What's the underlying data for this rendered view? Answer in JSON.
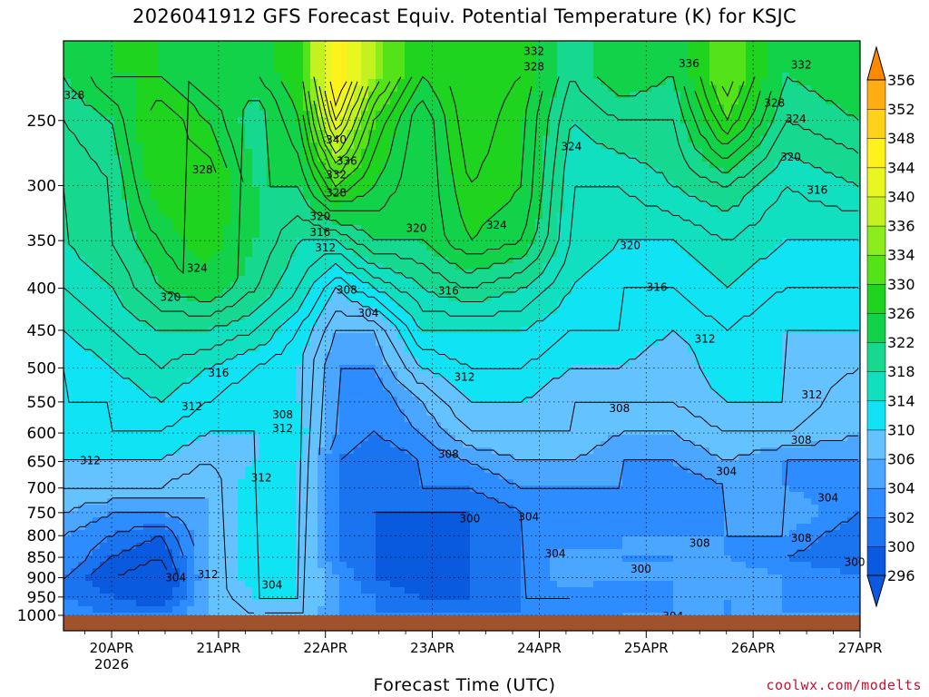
{
  "title": "2026041912 GFS Forecast Equiv. Potential Temperature (K) for KSJC",
  "credit": "coolwx.com/modelts",
  "chart_data": {
    "type": "heatmap",
    "title": "2026041912 GFS Forecast Equiv. Potential Temperature (K) for KSJC",
    "xlabel": "Forecast Time (UTC)",
    "ylabel": "",
    "x_ticks": [
      {
        "label": "20APR",
        "sub": "2026",
        "day": 0
      },
      {
        "label": "21APR",
        "sub": "",
        "day": 1
      },
      {
        "label": "22APR",
        "sub": "",
        "day": 2
      },
      {
        "label": "23APR",
        "sub": "",
        "day": 3
      },
      {
        "label": "24APR",
        "sub": "",
        "day": 4
      },
      {
        "label": "25APR",
        "sub": "",
        "day": 5
      },
      {
        "label": "26APR",
        "sub": "",
        "day": 6
      },
      {
        "label": "27APR",
        "sub": "",
        "day": 7
      }
    ],
    "xlim": [
      -0.45,
      7.0
    ],
    "y_ticks": [
      250,
      300,
      350,
      400,
      450,
      500,
      550,
      600,
      650,
      700,
      750,
      800,
      850,
      900,
      950,
      1000
    ],
    "ylim": [
      200,
      1000
    ],
    "y_scale": "log",
    "y_inverted": true,
    "grid": "dotted",
    "colorbar": {
      "levels": [
        296,
        300,
        302,
        304,
        306,
        310,
        314,
        318,
        322,
        326,
        330,
        334,
        336,
        340,
        344,
        348,
        352,
        356
      ],
      "colors": [
        "#0a5ae0",
        "#1a74f0",
        "#2d8cff",
        "#4aa6ff",
        "#64c2ff",
        "#10e4f4",
        "#10e0c0",
        "#16d88e",
        "#12d24a",
        "#1ed41e",
        "#54e218",
        "#8ced1c",
        "#c4f220",
        "#eaf620",
        "#fff21c",
        "#ffd21a",
        "#ffae12",
        "#ff8a00"
      ],
      "extend": "both"
    },
    "theta_levels": [
      {
        "p": 220,
        "v": [
          322,
          326,
          326,
          322,
          324,
          328,
          348,
          336,
          326,
          330,
          328,
          320,
          324,
          322,
          334,
          322,
          324
        ]
      },
      {
        "p": 250,
        "v": [
          320,
          322,
          330,
          326,
          320,
          326,
          342,
          330,
          322,
          330,
          326,
          318,
          320,
          320,
          330,
          320,
          322
        ]
      },
      {
        "p": 300,
        "v": [
          318,
          320,
          328,
          330,
          322,
          322,
          330,
          326,
          322,
          328,
          326,
          316,
          316,
          318,
          320,
          316,
          318
        ]
      },
      {
        "p": 350,
        "v": [
          318,
          320,
          324,
          328,
          322,
          318,
          318,
          322,
          322,
          326,
          324,
          316,
          314,
          314,
          316,
          314,
          314
        ]
      },
      {
        "p": 400,
        "v": [
          316,
          318,
          322,
          324,
          320,
          316,
          310,
          314,
          318,
          320,
          318,
          314,
          312,
          312,
          314,
          312,
          312
        ]
      },
      {
        "p": 450,
        "v": [
          314,
          316,
          318,
          318,
          316,
          312,
          306,
          306,
          314,
          314,
          314,
          312,
          312,
          310,
          312,
          310,
          310
        ]
      },
      {
        "p": 500,
        "v": [
          312,
          314,
          316,
          314,
          312,
          310,
          304,
          304,
          310,
          312,
          312,
          310,
          310,
          308,
          312,
          310,
          308
        ]
      },
      {
        "p": 550,
        "v": [
          312,
          312,
          314,
          312,
          310,
          310,
          304,
          302,
          306,
          310,
          310,
          308,
          308,
          308,
          310,
          310,
          306
        ]
      },
      {
        "p": 600,
        "v": [
          312,
          312,
          312,
          310,
          310,
          312,
          304,
          302,
          304,
          308,
          308,
          308,
          306,
          306,
          308,
          308,
          306
        ]
      },
      {
        "p": 650,
        "v": [
          310,
          310,
          310,
          308,
          310,
          310,
          302,
          300,
          302,
          304,
          306,
          306,
          304,
          304,
          306,
          304,
          304
        ]
      },
      {
        "p": 700,
        "v": [
          308,
          308,
          308,
          306,
          312,
          310,
          302,
          300,
          302,
          302,
          304,
          304,
          304,
          302,
          304,
          304,
          302
        ]
      },
      {
        "p": 750,
        "v": [
          306,
          304,
          304,
          306,
          312,
          310,
          302,
          300,
          300,
          300,
          302,
          304,
          302,
          302,
          304,
          306,
          302
        ]
      },
      {
        "p": 800,
        "v": [
          304,
          302,
          300,
          306,
          312,
          310,
          302,
          300,
          298,
          300,
          302,
          302,
          304,
          304,
          304,
          304,
          300
        ]
      },
      {
        "p": 850,
        "v": [
          304,
          300,
          298,
          306,
          312,
          310,
          302,
          300,
          298,
          300,
          302,
          306,
          304,
          304,
          304,
          302,
          300
        ]
      },
      {
        "p": 900,
        "v": [
          302,
          298,
          296,
          306,
          312,
          310,
          304,
          300,
          298,
          300,
          302,
          306,
          304,
          304,
          306,
          304,
          302
        ]
      },
      {
        "p": 950,
        "v": [
          302,
          300,
          298,
          306,
          310,
          310,
          304,
          302,
          300,
          300,
          302,
          302,
          302,
          304,
          304,
          304,
          302
        ]
      },
      {
        "p": 1000,
        "v": [
          304,
          302,
          302,
          306,
          308,
          308,
          304,
          302,
          302,
          302,
          302,
          302,
          304,
          304,
          304,
          304,
          304
        ]
      }
    ],
    "theta_time_days": [
      -0.45,
      0.0,
      0.45,
      0.9,
      1.35,
      1.75,
      2.1,
      2.45,
      2.9,
      3.35,
      3.85,
      4.3,
      4.75,
      5.25,
      5.75,
      6.3,
      7.0
    ],
    "contour_labels": [
      {
        "day": -0.35,
        "p": 233,
        "text": "328"
      },
      {
        "day": 0.85,
        "p": 287,
        "text": "328"
      },
      {
        "day": 0.8,
        "p": 378,
        "text": "324"
      },
      {
        "day": 0.55,
        "p": 410,
        "text": "320"
      },
      {
        "day": 1.0,
        "p": 507,
        "text": "316"
      },
      {
        "day": 0.75,
        "p": 557,
        "text": "312"
      },
      {
        "day": -0.2,
        "p": 648,
        "text": "312"
      },
      {
        "day": 1.6,
        "p": 570,
        "text": "308"
      },
      {
        "day": 1.6,
        "p": 592,
        "text": "312"
      },
      {
        "day": 1.4,
        "p": 680,
        "text": "312"
      },
      {
        "day": 1.5,
        "p": 918,
        "text": "304"
      },
      {
        "day": 0.9,
        "p": 892,
        "text": "312"
      },
      {
        "day": 0.6,
        "p": 900,
        "text": "304"
      },
      {
        "day": 2.1,
        "p": 264,
        "text": "340"
      },
      {
        "day": 2.2,
        "p": 280,
        "text": "336"
      },
      {
        "day": 2.1,
        "p": 291,
        "text": "332"
      },
      {
        "day": 2.1,
        "p": 306,
        "text": "328"
      },
      {
        "day": 1.95,
        "p": 327,
        "text": "320"
      },
      {
        "day": 1.95,
        "p": 342,
        "text": "316"
      },
      {
        "day": 2.0,
        "p": 357,
        "text": "312"
      },
      {
        "day": 2.2,
        "p": 402,
        "text": "308"
      },
      {
        "day": 2.4,
        "p": 429,
        "text": "304"
      },
      {
        "day": 3.15,
        "p": 403,
        "text": "316"
      },
      {
        "day": 3.3,
        "p": 513,
        "text": "312"
      },
      {
        "day": 3.15,
        "p": 637,
        "text": "308"
      },
      {
        "day": 3.35,
        "p": 763,
        "text": "300"
      },
      {
        "day": 3.9,
        "p": 759,
        "text": "304"
      },
      {
        "day": 4.15,
        "p": 841,
        "text": "304"
      },
      {
        "day": 2.85,
        "p": 338,
        "text": "320"
      },
      {
        "day": 3.6,
        "p": 335,
        "text": "324"
      },
      {
        "day": 4.3,
        "p": 269,
        "text": "324"
      },
      {
        "day": 3.95,
        "p": 206,
        "text": "332"
      },
      {
        "day": 3.95,
        "p": 215,
        "text": "328"
      },
      {
        "day": 5.4,
        "p": 213,
        "text": "336"
      },
      {
        "day": 6.45,
        "p": 214,
        "text": "332"
      },
      {
        "day": 6.2,
        "p": 238,
        "text": "328"
      },
      {
        "day": 6.4,
        "p": 249,
        "text": "324"
      },
      {
        "day": 6.35,
        "p": 277,
        "text": "320"
      },
      {
        "day": 6.6,
        "p": 304,
        "text": "316"
      },
      {
        "day": 4.85,
        "p": 355,
        "text": "320"
      },
      {
        "day": 5.1,
        "p": 399,
        "text": "316"
      },
      {
        "day": 5.55,
        "p": 461,
        "text": "312"
      },
      {
        "day": 6.55,
        "p": 539,
        "text": "312"
      },
      {
        "day": 4.75,
        "p": 560,
        "text": "308"
      },
      {
        "day": 6.45,
        "p": 612,
        "text": "308"
      },
      {
        "day": 5.75,
        "p": 668,
        "text": "304"
      },
      {
        "day": 6.7,
        "p": 719,
        "text": "304"
      },
      {
        "day": 6.45,
        "p": 806,
        "text": "308"
      },
      {
        "day": 5.5,
        "p": 817,
        "text": "308"
      },
      {
        "day": 4.95,
        "p": 878,
        "text": "300"
      },
      {
        "day": 6.95,
        "p": 862,
        "text": "300"
      },
      {
        "day": 5.25,
        "p": 1003,
        "text": "304"
      }
    ]
  }
}
